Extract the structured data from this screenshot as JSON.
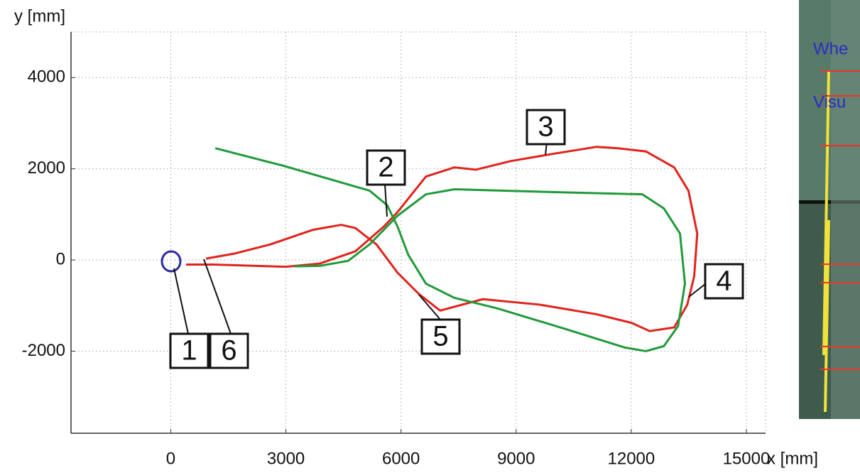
{
  "chart_data": {
    "type": "line",
    "xlabel": "x [mm]",
    "ylabel": "y [mm]",
    "xlim": [
      -2600,
      15500
    ],
    "ylim": [
      -3800,
      5000
    ],
    "xticks": [
      0,
      3000,
      6000,
      9000,
      12000,
      15000
    ],
    "yticks": [
      -2000,
      0,
      2000,
      4000
    ],
    "grid": true,
    "series": [
      {
        "color": "#e0231c",
        "x": [
          400,
          1100,
          3000,
          3880,
          4810,
          5550,
          5910,
          6650,
          7390,
          7950,
          8870,
          9980,
          11090,
          11650,
          12380,
          13120,
          13490,
          13720,
          13640,
          13460,
          13120,
          12480,
          12010,
          11090,
          9610,
          8130,
          7020,
          6470,
          5910,
          5360,
          4810,
          4440,
          3700,
          2590,
          1660,
          920
        ],
        "values": [
          -100,
          -100,
          -150,
          -80,
          190,
          730,
          1050,
          1830,
          2030,
          1980,
          2170,
          2330,
          2480,
          2450,
          2380,
          2030,
          1520,
          580,
          -360,
          -980,
          -1480,
          -1560,
          -1380,
          -1190,
          -980,
          -860,
          -1110,
          -750,
          -280,
          340,
          700,
          770,
          660,
          340,
          140,
          30
        ]
      },
      {
        "color": "#1f9a3a",
        "x": [
          1160,
          2960,
          5180,
          5640,
          5910,
          6190,
          6650,
          7390,
          8500,
          10350,
          11830,
          12380,
          12850,
          13220,
          13400,
          13270,
          12850,
          12290,
          10350,
          7390,
          6650,
          5910,
          5180,
          4620,
          3880,
          3230
        ],
        "values": [
          2450,
          2060,
          1520,
          1200,
          730,
          110,
          -520,
          -830,
          -1060,
          -1530,
          -1920,
          -2000,
          -1890,
          -1450,
          -520,
          580,
          1130,
          1440,
          1480,
          1550,
          1440,
          970,
          340,
          -20,
          -130,
          -140
        ]
      }
    ],
    "annotations": [
      {
        "label": "1"
      },
      {
        "label": "6"
      },
      {
        "label": "2"
      },
      {
        "label": "3"
      },
      {
        "label": "4"
      },
      {
        "label": "5"
      }
    ]
  },
  "inset": {
    "labels": [
      "Whe",
      "Visu"
    ]
  }
}
